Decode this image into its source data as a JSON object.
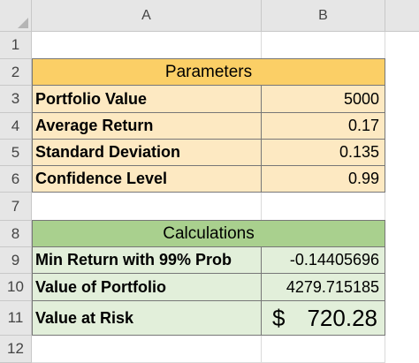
{
  "columns": [
    "A",
    "B"
  ],
  "rows": [
    "1",
    "2",
    "3",
    "4",
    "5",
    "6",
    "7",
    "8",
    "9",
    "10",
    "11",
    "12"
  ],
  "parameters": {
    "title": "Parameters",
    "items": [
      {
        "label": "Portfolio Value",
        "value": "5000"
      },
      {
        "label": "Average Return",
        "value": "0.17"
      },
      {
        "label": "Standard Deviation",
        "value": "0.135"
      },
      {
        "label": "Confidence Level",
        "value": "0.99"
      }
    ]
  },
  "calculations": {
    "title": "Calculations",
    "items": [
      {
        "label": "Min Return with 99% Prob",
        "value": "-0.14405696"
      },
      {
        "label": "Value of Portfolio",
        "value": "4279.715185"
      }
    ],
    "var": {
      "label": "Value at Risk",
      "currency": "$",
      "amount": "720.28"
    }
  },
  "colors": {
    "parameters_header": "#fbcf66",
    "parameters_fill": "#fde9c2",
    "calculations_header": "#a9d08e",
    "calculations_fill": "#e2efda",
    "header_gray": "#e6e6e6"
  }
}
